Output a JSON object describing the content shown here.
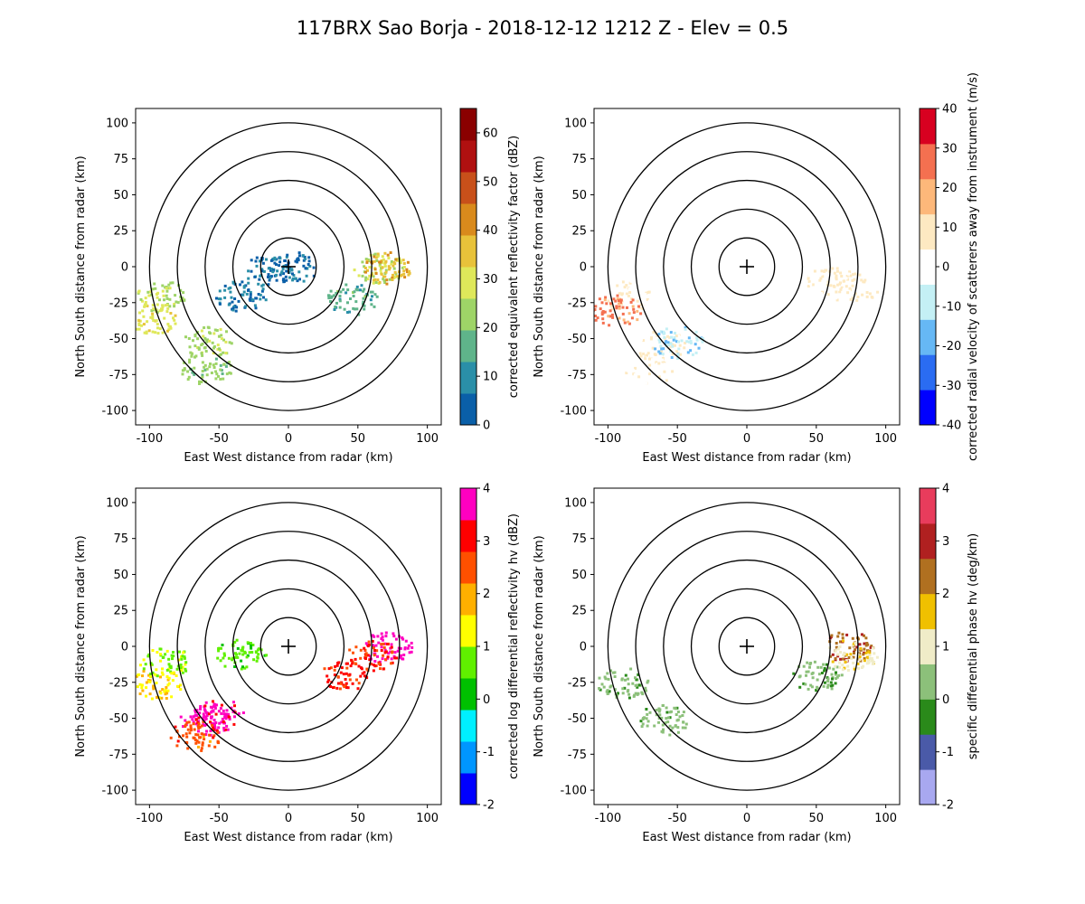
{
  "figure": {
    "title": "117BRX Sao Borja - 2018-12-12 1212 Z -  Elev = 0.5"
  },
  "chart_data": [
    {
      "type": "heatmap",
      "field": "reflectivity",
      "xlabel": "East West distance from radar (km)",
      "ylabel": "North South distance from radar (km)",
      "xlim": [
        -110,
        110
      ],
      "ylim": [
        -110,
        110
      ],
      "xticks": [
        -100,
        -50,
        0,
        50,
        100
      ],
      "yticks": [
        -100,
        -75,
        -50,
        -25,
        0,
        25,
        50,
        75,
        100
      ],
      "range_rings_km": [
        20,
        40,
        60,
        80,
        100
      ],
      "colorbar": {
        "label": "corrected equivalent reflectivity factor (dBZ)",
        "range": [
          0,
          65
        ],
        "ticks": [
          0,
          10,
          20,
          30,
          40,
          50,
          60
        ],
        "colors": [
          "#0a5fa8",
          "#2a8fa8",
          "#5fb48a",
          "#9ed467",
          "#dfe85a",
          "#e8c23a",
          "#d98a1c",
          "#c8501a",
          "#b01010",
          "#8a0000"
        ]
      },
      "echoes": [
        {
          "x": 2,
          "y": 0,
          "value": 5
        },
        {
          "x": -15,
          "y": -2,
          "value": 6
        },
        {
          "x": -35,
          "y": -20,
          "value": 7
        },
        {
          "x": 65,
          "y": 0,
          "value": 26
        },
        {
          "x": 70,
          "y": 0,
          "value": 38
        },
        {
          "x": 45,
          "y": -22,
          "value": 16
        },
        {
          "x": -92,
          "y": -20,
          "value": 25
        },
        {
          "x": -98,
          "y": -35,
          "value": 30
        },
        {
          "x": -58,
          "y": -52,
          "value": 24
        },
        {
          "x": -60,
          "y": -70,
          "value": 22
        }
      ]
    },
    {
      "type": "heatmap",
      "field": "velocity",
      "xlabel": "East West distance from radar (km)",
      "ylabel": "North South distance from radar (km)",
      "xlim": [
        -110,
        110
      ],
      "ylim": [
        -110,
        110
      ],
      "xticks": [
        -100,
        -50,
        0,
        50,
        100
      ],
      "yticks": [
        -100,
        -75,
        -50,
        -25,
        0,
        25,
        50,
        75,
        100
      ],
      "range_rings_km": [
        20,
        40,
        60,
        80,
        100
      ],
      "colorbar": {
        "label": "corrected radial velocity of scatterers away from instrument (m/s)",
        "range": [
          -40,
          40
        ],
        "ticks": [
          -40,
          -30,
          -20,
          -10,
          0,
          10,
          20,
          30,
          40
        ],
        "colors": [
          "#0000ff",
          "#2a6cf2",
          "#66b8f5",
          "#c4f0f5",
          "#ffffff",
          "#fde9c2",
          "#fdb87a",
          "#f47050",
          "#d80020"
        ]
      },
      "echoes": [
        {
          "x": 60,
          "y": -10,
          "value": 5
        },
        {
          "x": 75,
          "y": -15,
          "value": 6
        },
        {
          "x": -88,
          "y": -20,
          "value": 4
        },
        {
          "x": -62,
          "y": -55,
          "value": 5
        },
        {
          "x": -70,
          "y": -70,
          "value": 3
        },
        {
          "x": -50,
          "y": -52,
          "value": -12
        },
        {
          "x": -95,
          "y": -30,
          "value": 25
        }
      ]
    },
    {
      "type": "heatmap",
      "field": "differential_reflectivity",
      "xlabel": "East West distance from radar (km)",
      "ylabel": "North South distance from radar (km)",
      "xlim": [
        -110,
        110
      ],
      "ylim": [
        -110,
        110
      ],
      "xticks": [
        -100,
        -50,
        0,
        50,
        100
      ],
      "yticks": [
        -100,
        -75,
        -50,
        -25,
        0,
        25,
        50,
        75,
        100
      ],
      "range_rings_km": [
        20,
        40,
        60,
        80,
        100
      ],
      "colorbar": {
        "label": "corrected log differential reflectivity hv (dBZ)",
        "range": [
          -2,
          4
        ],
        "ticks": [
          -2,
          -1,
          0,
          1,
          2,
          3,
          4
        ],
        "colors": [
          "#0000ff",
          "#0096ff",
          "#00f0ff",
          "#00c000",
          "#60f000",
          "#ffff00",
          "#ffb000",
          "#ff5000",
          "#ff0000",
          "#ff00c0"
        ]
      },
      "echoes": [
        {
          "x": -95,
          "y": -25,
          "value": 1.5
        },
        {
          "x": -90,
          "y": -10,
          "value": 0.8
        },
        {
          "x": -60,
          "y": -50,
          "value": 3.8
        },
        {
          "x": -50,
          "y": -47,
          "value": 3.5
        },
        {
          "x": -68,
          "y": -62,
          "value": 2.5
        },
        {
          "x": 40,
          "y": -20,
          "value": 3
        },
        {
          "x": 70,
          "y": 0,
          "value": 3.8
        },
        {
          "x": 60,
          "y": -5,
          "value": 2.8
        },
        {
          "x": -35,
          "y": -5,
          "value": 0.6
        }
      ]
    },
    {
      "type": "heatmap",
      "field": "specific_differential_phase",
      "xlabel": "East West distance from radar (km)",
      "ylabel": "North South distance from radar (km)",
      "xlim": [
        -110,
        110
      ],
      "ylim": [
        -110,
        110
      ],
      "xticks": [
        -100,
        -50,
        0,
        50,
        100
      ],
      "yticks": [
        -100,
        -75,
        -50,
        -25,
        0,
        25,
        50,
        75,
        100
      ],
      "range_rings_km": [
        20,
        40,
        60,
        80,
        100
      ],
      "colorbar": {
        "label": "specific differential phase hv (deg/km)",
        "range": [
          -2,
          4
        ],
        "ticks": [
          -2,
          -1,
          0,
          1,
          2,
          3,
          4
        ],
        "colors": [
          "#a8a8f0",
          "#4a5aa8",
          "#2a8a1a",
          "#8cc07a",
          "#f0ecc8",
          "#f0c000",
          "#b07020",
          "#b02020",
          "#e83c5c"
        ]
      },
      "echoes": [
        {
          "x": -90,
          "y": -25,
          "value": 0.2
        },
        {
          "x": -60,
          "y": -50,
          "value": 0.3
        },
        {
          "x": 50,
          "y": -20,
          "value": 0.2
        },
        {
          "x": 72,
          "y": 0,
          "value": 2.5
        },
        {
          "x": 75,
          "y": -5,
          "value": 1.2
        }
      ]
    }
  ]
}
